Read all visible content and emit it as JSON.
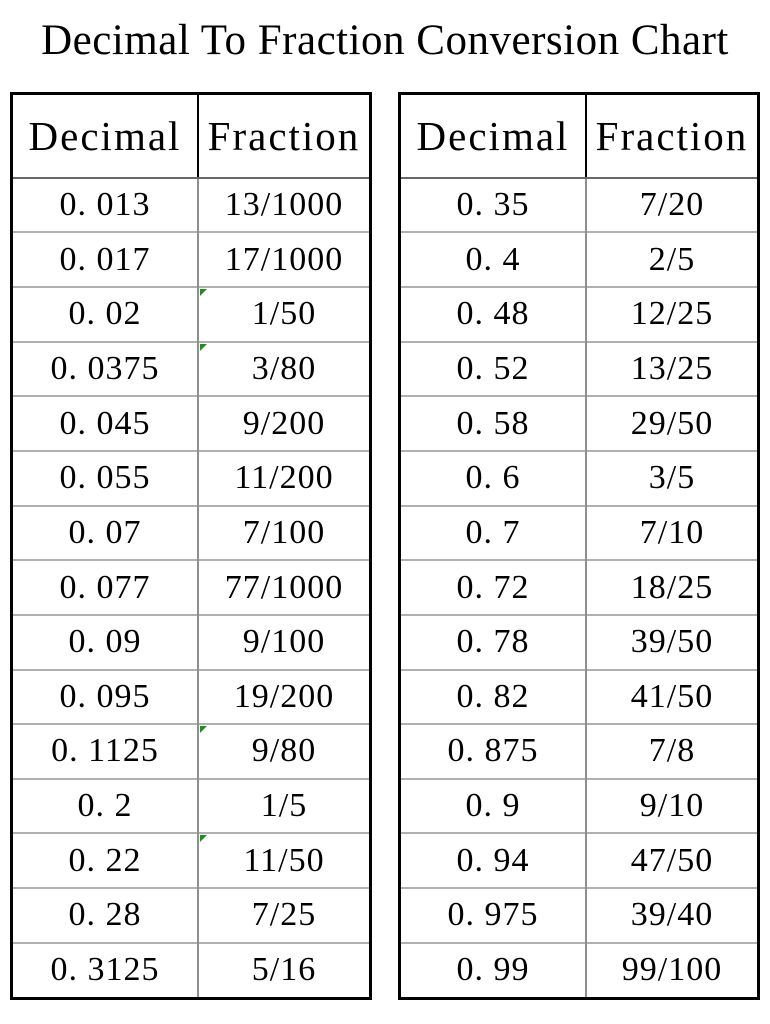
{
  "page": {
    "title": "Decimal To Fraction Conversion Chart"
  },
  "colors": {
    "background": "#ffffff",
    "text": "#000000",
    "outer_border": "#000000",
    "header_underline": "#686868",
    "column_divider": "#8f8f8f",
    "row_line": "#b0b0b0",
    "error_mark_green": "#1e8f1e"
  },
  "display": {
    "tables": [
      {
        "header": {
          "decimal": "Decimal",
          "fraction": "Fraction"
        },
        "rows": [
          {
            "decimal": "0. 013",
            "fraction": "13/1000",
            "error_mark": false
          },
          {
            "decimal": "0. 017",
            "fraction": "17/1000",
            "error_mark": false
          },
          {
            "decimal": "0. 02",
            "fraction": "1/50",
            "error_mark": true
          },
          {
            "decimal": "0. 0375",
            "fraction": "3/80",
            "error_mark": true
          },
          {
            "decimal": "0. 045",
            "fraction": "9/200",
            "error_mark": false
          },
          {
            "decimal": "0. 055",
            "fraction": "11/200",
            "error_mark": false
          },
          {
            "decimal": "0. 07",
            "fraction": "7/100",
            "error_mark": false
          },
          {
            "decimal": "0. 077",
            "fraction": "77/1000",
            "error_mark": false
          },
          {
            "decimal": "0. 09",
            "fraction": "9/100",
            "error_mark": false
          },
          {
            "decimal": "0. 095",
            "fraction": "19/200",
            "error_mark": false
          },
          {
            "decimal": "0. 1125",
            "fraction": "9/80",
            "error_mark": true
          },
          {
            "decimal": "0. 2",
            "fraction": "1/5",
            "error_mark": false
          },
          {
            "decimal": "0. 22",
            "fraction": "11/50",
            "error_mark": true
          },
          {
            "decimal": "0. 28",
            "fraction": "7/25",
            "error_mark": false
          },
          {
            "decimal": "0. 3125",
            "fraction": "5/16",
            "error_mark": false
          }
        ]
      },
      {
        "header": {
          "decimal": "Decimal",
          "fraction": "Fraction"
        },
        "rows": [
          {
            "decimal": "0. 35",
            "fraction": "7/20",
            "error_mark": false
          },
          {
            "decimal": "0. 4",
            "fraction": "2/5",
            "error_mark": false
          },
          {
            "decimal": "0. 48",
            "fraction": "12/25",
            "error_mark": false
          },
          {
            "decimal": "0. 52",
            "fraction": "13/25",
            "error_mark": false
          },
          {
            "decimal": "0. 58",
            "fraction": "29/50",
            "error_mark": false
          },
          {
            "decimal": "0. 6",
            "fraction": "3/5",
            "error_mark": false
          },
          {
            "decimal": "0. 7",
            "fraction": "7/10",
            "error_mark": false
          },
          {
            "decimal": "0. 72",
            "fraction": "18/25",
            "error_mark": false
          },
          {
            "decimal": "0. 78",
            "fraction": "39/50",
            "error_mark": false
          },
          {
            "decimal": "0. 82",
            "fraction": "41/50",
            "error_mark": false
          },
          {
            "decimal": "0. 875",
            "fraction": "7/8",
            "error_mark": false
          },
          {
            "decimal": "0. 9",
            "fraction": "9/10",
            "error_mark": false
          },
          {
            "decimal": "0. 94",
            "fraction": "47/50",
            "error_mark": false
          },
          {
            "decimal": "0. 975",
            "fraction": "39/40",
            "error_mark": false
          },
          {
            "decimal": "0. 99",
            "fraction": "99/100",
            "error_mark": false
          }
        ]
      }
    ]
  },
  "chart_data": {
    "type": "table",
    "title": "Decimal To Fraction Conversion Chart",
    "columns": [
      "Decimal",
      "Fraction"
    ],
    "tables": [
      {
        "name": "left",
        "rows": [
          [
            "0.013",
            "13/1000"
          ],
          [
            "0.017",
            "17/1000"
          ],
          [
            "0.02",
            "1/50"
          ],
          [
            "0.0375",
            "3/80"
          ],
          [
            "0.045",
            "9/200"
          ],
          [
            "0.055",
            "11/200"
          ],
          [
            "0.07",
            "7/100"
          ],
          [
            "0.077",
            "77/1000"
          ],
          [
            "0.09",
            "9/100"
          ],
          [
            "0.095",
            "19/200"
          ],
          [
            "0.1125",
            "9/80"
          ],
          [
            "0.2",
            "1/5"
          ],
          [
            "0.22",
            "11/50"
          ],
          [
            "0.28",
            "7/25"
          ],
          [
            "0.3125",
            "5/16"
          ]
        ]
      },
      {
        "name": "right",
        "rows": [
          [
            "0.35",
            "7/20"
          ],
          [
            "0.4",
            "2/5"
          ],
          [
            "0.48",
            "12/25"
          ],
          [
            "0.52",
            "13/25"
          ],
          [
            "0.58",
            "29/50"
          ],
          [
            "0.6",
            "3/5"
          ],
          [
            "0.7",
            "7/10"
          ],
          [
            "0.72",
            "18/25"
          ],
          [
            "0.78",
            "39/50"
          ],
          [
            "0.82",
            "41/50"
          ],
          [
            "0.875",
            "7/8"
          ],
          [
            "0.9",
            "9/10"
          ],
          [
            "0.94",
            "47/50"
          ],
          [
            "0.975",
            "39/40"
          ],
          [
            "0.99",
            "99/100"
          ]
        ]
      }
    ]
  }
}
